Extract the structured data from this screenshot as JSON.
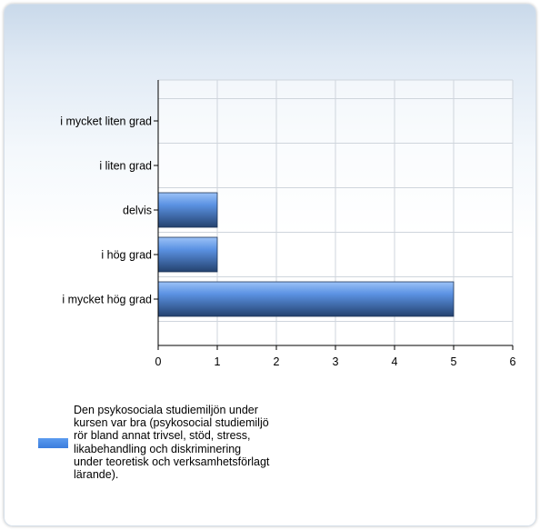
{
  "chart_data": {
    "type": "bar",
    "orientation": "horizontal",
    "categories": [
      "i mycket liten grad",
      "i liten grad",
      "delvis",
      "i hög grad",
      "i mycket hög grad"
    ],
    "series": [
      {
        "name": "Den psykosociala studiemiljön under kursen var bra (psykosocial studiemiljö rör bland annat trivsel, stöd, stress, likabehandling och diskriminering under teoretisk och verksamhetsförlagt lärande).",
        "values": [
          0,
          0,
          1,
          1,
          5
        ],
        "color": "#4a86e0"
      }
    ],
    "xlim": [
      0,
      6
    ],
    "xticks": [
      "0",
      "1",
      "2",
      "3",
      "4",
      "5",
      "6"
    ],
    "grid": true,
    "legend_position": "bottom-left"
  }
}
